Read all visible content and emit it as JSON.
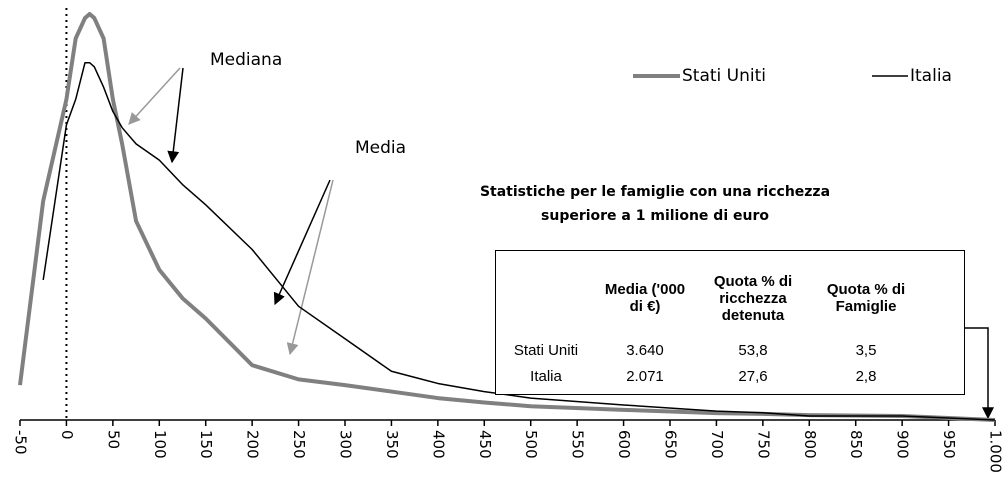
{
  "chart_data": {
    "type": "line",
    "x": [
      -50,
      -25,
      0,
      10,
      20,
      25,
      30,
      40,
      50,
      60,
      75,
      100,
      125,
      150,
      200,
      250,
      300,
      350,
      400,
      450,
      500,
      600,
      700,
      750,
      800,
      900,
      1000
    ],
    "series": [
      {
        "name": "Stati Uniti",
        "color": "#808080",
        "width": 4,
        "values": [
          8.6,
          54,
          79,
          94,
          99,
          100,
          99,
          94,
          79,
          68,
          49,
          37,
          30,
          25,
          13.5,
          10,
          8.6,
          7,
          5.4,
          4.3,
          3.4,
          2.5,
          1.7,
          1.5,
          1.2,
          1,
          0
        ]
      },
      {
        "name": "Italia",
        "color": "#000000",
        "width": 1.5,
        "values": [
          null,
          34.5,
          72.7,
          79,
          88,
          88,
          87,
          82,
          76,
          72,
          68,
          64,
          58,
          53,
          42,
          28,
          20,
          12,
          9,
          7,
          5.4,
          3.7,
          2.2,
          1.8,
          1,
          1,
          0
        ]
      }
    ],
    "xlim": [
      -50,
      1000
    ],
    "xticks": [
      -50,
      0,
      50,
      100,
      150,
      200,
      250,
      300,
      350,
      400,
      450,
      500,
      550,
      600,
      650,
      700,
      750,
      800,
      850,
      900,
      950,
      {
        "value": 1000,
        "label": "1.000"
      }
    ],
    "ylim": [
      0,
      100
    ],
    "annotations": [
      "Mediana",
      "Media"
    ],
    "inset": {
      "title_lines": [
        "Statistiche per le famiglie con una ricchezza",
        "superiore a 1 milione di euro"
      ],
      "headers": [
        "Media ('000 di €)",
        "Quota % di ricchezza detenuta",
        "Quota % di Famiglie"
      ],
      "rows": [
        [
          "Stati Uniti",
          "3.640",
          "53,8",
          "3,5"
        ],
        [
          "Italia",
          "2.071",
          "27,6",
          "2,8"
        ]
      ]
    }
  }
}
